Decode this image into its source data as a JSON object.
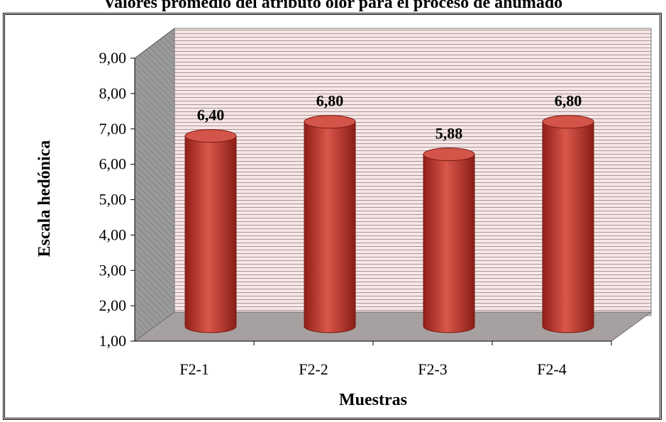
{
  "chart_data": {
    "type": "bar",
    "style": "3d-cylinder",
    "title": "Valores promedio del atributo olor para el proceso de ahumado",
    "xlabel": "Muestras",
    "ylabel": "Escala hedónica",
    "categories": [
      "F2-1",
      "F2-2",
      "F2-3",
      "F2-4"
    ],
    "values": [
      6.4,
      6.8,
      5.88,
      6.8
    ],
    "data_labels": [
      "6,40",
      "6,80",
      "5,88",
      "6,80"
    ],
    "ylim": [
      1,
      9
    ],
    "yticks": [
      "1,00",
      "2,00",
      "3,00",
      "4,00",
      "5,00",
      "6,00",
      "7,00",
      "8,00",
      "9,00"
    ],
    "grid": true,
    "legend": "none",
    "colors": {
      "bar": "#c0392b",
      "bar_top": "#d35449",
      "back_wall": "#f6e6e6",
      "back_wall_lines": "#a89898",
      "side_wall": "#9a9a9a",
      "floor": "#a7a0a0"
    }
  }
}
